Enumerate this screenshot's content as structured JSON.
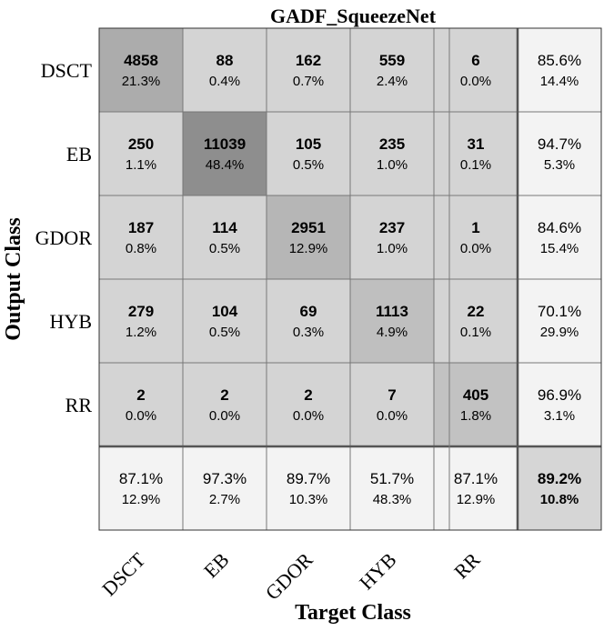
{
  "chart_data": {
    "type": "heatmap",
    "title": "GADF_SqueezeNet",
    "xlabel": "Target Class",
    "ylabel": "Output Class",
    "classes": [
      "DSCT",
      "EB",
      "GDOR",
      "HYB",
      "RR"
    ],
    "counts": [
      [
        4858,
        88,
        162,
        559,
        6
      ],
      [
        250,
        11039,
        105,
        235,
        31
      ],
      [
        187,
        114,
        2951,
        237,
        1
      ],
      [
        279,
        104,
        69,
        1113,
        22
      ],
      [
        2,
        2,
        2,
        7,
        405
      ]
    ],
    "percents": [
      [
        "21.3%",
        "0.4%",
        "0.7%",
        "2.4%",
        "0.0%"
      ],
      [
        "1.1%",
        "48.4%",
        "0.5%",
        "1.0%",
        "0.1%"
      ],
      [
        "0.8%",
        "0.5%",
        "12.9%",
        "1.0%",
        "0.0%"
      ],
      [
        "1.2%",
        "0.5%",
        "0.3%",
        "4.9%",
        "0.1%"
      ],
      [
        "0.0%",
        "0.0%",
        "0.0%",
        "0.0%",
        "1.8%"
      ]
    ],
    "row_summary": [
      [
        "85.6%",
        "14.4%"
      ],
      [
        "94.7%",
        "5.3%"
      ],
      [
        "84.6%",
        "15.4%"
      ],
      [
        "70.1%",
        "29.9%"
      ],
      [
        "96.9%",
        "3.1%"
      ]
    ],
    "col_summary": [
      [
        "87.1%",
        "12.9%"
      ],
      [
        "97.3%",
        "2.7%"
      ],
      [
        "89.7%",
        "10.3%"
      ],
      [
        "51.7%",
        "48.3%"
      ],
      [
        "87.1%",
        "12.9%"
      ]
    ],
    "overall": [
      "89.2%",
      "10.8%"
    ]
  }
}
